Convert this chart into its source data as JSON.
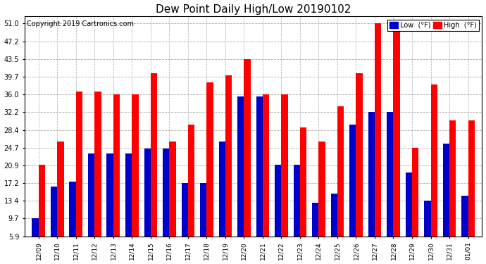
{
  "title": "Dew Point Daily High/Low 20190102",
  "copyright": "Copyright 2019 Cartronics.com",
  "dates": [
    "12/09",
    "12/10",
    "12/11",
    "12/12",
    "12/13",
    "12/14",
    "12/15",
    "12/16",
    "12/17",
    "12/18",
    "12/19",
    "12/20",
    "12/21",
    "12/22",
    "12/23",
    "12/24",
    "12/25",
    "12/26",
    "12/27",
    "12/28",
    "12/29",
    "12/30",
    "12/31",
    "01/01"
  ],
  "high": [
    21.0,
    26.0,
    36.5,
    36.5,
    36.0,
    36.0,
    40.5,
    26.0,
    29.5,
    38.5,
    40.0,
    43.5,
    36.0,
    36.0,
    29.0,
    26.0,
    33.5,
    40.5,
    51.0,
    50.5,
    24.7,
    38.0,
    30.5,
    30.5
  ],
  "low": [
    9.7,
    16.5,
    17.5,
    23.5,
    23.5,
    23.5,
    24.5,
    24.5,
    17.2,
    17.2,
    26.0,
    35.5,
    35.5,
    21.0,
    21.0,
    13.0,
    15.0,
    29.5,
    32.2,
    32.2,
    19.5,
    13.5,
    25.5,
    14.5
  ],
  "high_color": "#ff0000",
  "low_color": "#0000cc",
  "bg_color": "#ffffff",
  "plot_bg_color": "#ffffff",
  "grid_color": "#aaaaaa",
  "yticks": [
    5.9,
    9.7,
    13.4,
    17.2,
    20.9,
    24.7,
    28.4,
    32.2,
    36.0,
    39.7,
    43.5,
    47.2,
    51.0
  ],
  "ymin": 5.9,
  "ymax": 52.5,
  "title_fontsize": 11,
  "copyright_fontsize": 7,
  "legend_low_label": "Low  (°F)",
  "legend_high_label": "High  (°F)",
  "bar_width": 0.35,
  "figwidth": 6.9,
  "figheight": 3.75,
  "dpi": 100
}
